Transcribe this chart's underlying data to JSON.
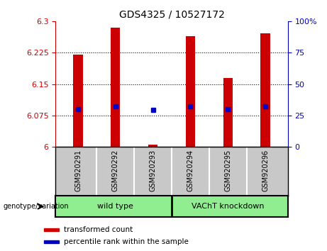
{
  "title": "GDS4325 / 10527172",
  "samples": [
    "GSM920291",
    "GSM920292",
    "GSM920293",
    "GSM920294",
    "GSM920295",
    "GSM920296"
  ],
  "bar_tops": [
    6.22,
    6.285,
    6.005,
    6.265,
    6.165,
    6.272
  ],
  "bar_base": 6.0,
  "blue_y": [
    6.09,
    6.096,
    6.088,
    6.096,
    6.09,
    6.096
  ],
  "ylim_left": [
    6.0,
    6.3
  ],
  "ylim_right": [
    0,
    100
  ],
  "yticks_left": [
    6.0,
    6.075,
    6.15,
    6.225,
    6.3
  ],
  "yticks_right": [
    0,
    25,
    50,
    75,
    100
  ],
  "bar_color": "#CC0000",
  "blue_color": "#0000CC",
  "left_axis_color": "#CC0000",
  "right_axis_color": "#0000BB",
  "grid_color": "#000000",
  "bg_plot": "#FFFFFF",
  "bg_fig": "#FFFFFF",
  "legend_items": [
    "transformed count",
    "percentile rank within the sample"
  ],
  "legend_colors": [
    "#CC0000",
    "#0000CC"
  ],
  "genotype_label": "genotype/variation",
  "group_labels": [
    "wild type",
    "VAChT knockdown"
  ],
  "group_bg_color": "#90EE90",
  "sample_bg_color": "#C8C8C8",
  "bar_width": 0.25
}
